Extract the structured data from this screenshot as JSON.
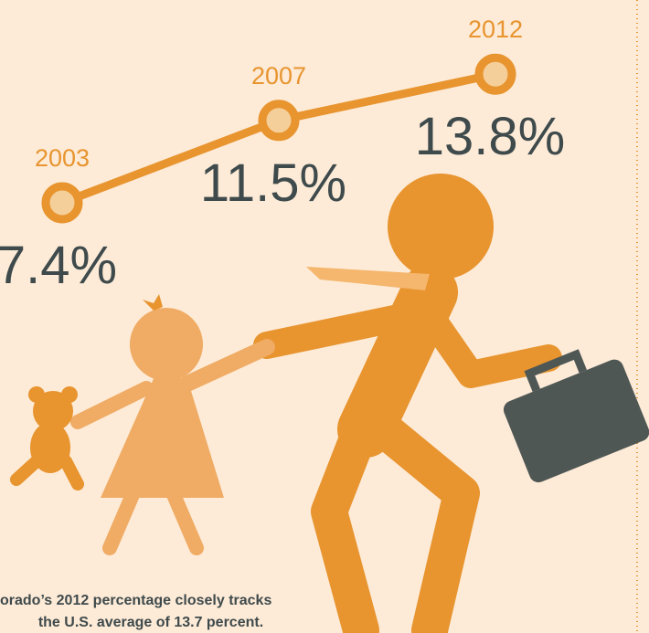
{
  "chart_data": {
    "type": "line",
    "categories": [
      "2003",
      "2007",
      "2012"
    ],
    "values": [
      7.4,
      11.5,
      13.8
    ],
    "value_labels": [
      "7.4%",
      "11.5%",
      "13.8%"
    ],
    "color": "#e8942f",
    "annotations": [
      "orado’s 2012 percentage closely tracks",
      "the U.S. average of 13.7 percent."
    ]
  }
}
